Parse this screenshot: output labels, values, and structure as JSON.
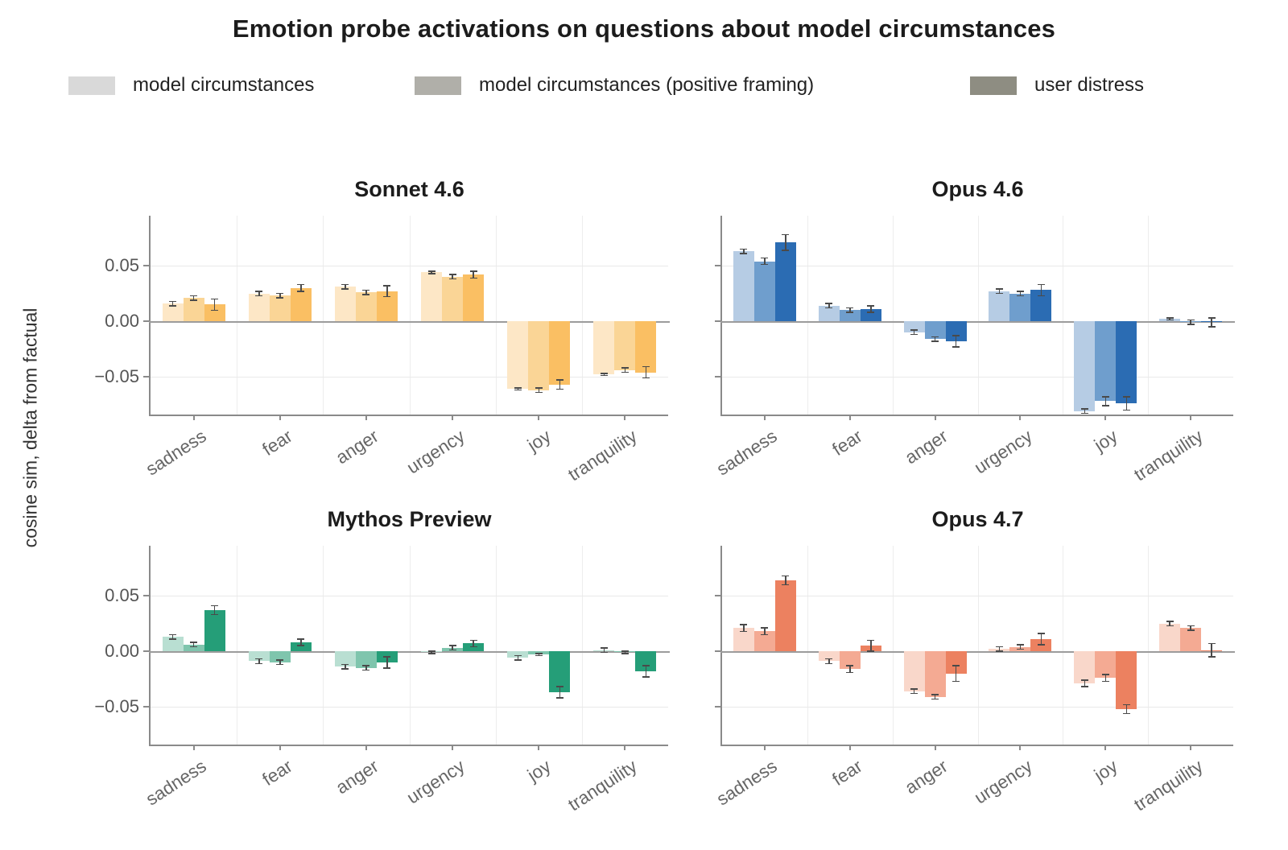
{
  "title": "Emotion probe activations on questions about model circumstances",
  "ylabel": "cosine sim, delta from factual",
  "legend": {
    "items": [
      {
        "label": "model circumstances",
        "color": "#d9d9d9"
      },
      {
        "label": "model circumstances (positive framing)",
        "color": "#b0afa9"
      },
      {
        "label": "user distress",
        "color": "#8e8d82"
      }
    ]
  },
  "chart_data": {
    "type": "bar",
    "categories": [
      "sadness",
      "fear",
      "anger",
      "urgency",
      "joy",
      "tranquility"
    ],
    "series_names": [
      "model circumstances",
      "model circumstances (positive framing)",
      "user distress"
    ],
    "ylim": [
      -0.084,
      0.095
    ],
    "yticks": [
      0.05,
      0.0,
      -0.05
    ],
    "ytick_labels": [
      "0.05",
      "0.00",
      "−0.05"
    ],
    "grid": true,
    "legend_position": "top",
    "error_bars": true,
    "subplots": [
      {
        "title": "Sonnet 4.6",
        "colors": [
          "#fde7c6",
          "#fad596",
          "#fabf63"
        ],
        "series": [
          {
            "name": "model circumstances",
            "values": [
              0.016,
              0.025,
              0.031,
              0.044,
              -0.061,
              -0.048
            ],
            "errors": [
              0.002,
              0.002,
              0.002,
              0.001,
              0.001,
              0.001
            ]
          },
          {
            "name": "model circumstances (positive framing)",
            "values": [
              0.021,
              0.023,
              0.026,
              0.04,
              -0.062,
              -0.044
            ],
            "errors": [
              0.002,
              0.002,
              0.002,
              0.002,
              0.002,
              0.002
            ]
          },
          {
            "name": "user distress",
            "values": [
              0.015,
              0.03,
              0.027,
              0.042,
              -0.057,
              -0.046
            ],
            "errors": [
              0.005,
              0.003,
              0.005,
              0.003,
              0.004,
              0.005
            ]
          }
        ]
      },
      {
        "title": "Opus 4.6",
        "colors": [
          "#b6cce4",
          "#6f9ecd",
          "#2b6cb3"
        ],
        "series": [
          {
            "name": "model circumstances",
            "values": [
              0.063,
              0.014,
              -0.01,
              0.027,
              -0.081,
              0.002
            ],
            "errors": [
              0.002,
              0.002,
              0.002,
              0.002,
              0.002,
              0.001
            ]
          },
          {
            "name": "model circumstances (positive framing)",
            "values": [
              0.054,
              0.01,
              -0.016,
              0.025,
              -0.072,
              -0.001
            ],
            "errors": [
              0.003,
              0.002,
              0.002,
              0.002,
              0.004,
              0.002
            ]
          },
          {
            "name": "user distress",
            "values": [
              0.071,
              0.011,
              -0.018,
              0.028,
              -0.074,
              -0.001
            ],
            "errors": [
              0.007,
              0.003,
              0.005,
              0.005,
              0.006,
              0.004
            ]
          }
        ]
      },
      {
        "title": "Mythos Preview",
        "colors": [
          "#b9dfd2",
          "#7fc5ad",
          "#259e78"
        ],
        "series": [
          {
            "name": "model circumstances",
            "values": [
              0.013,
              -0.009,
              -0.014,
              -0.001,
              -0.006,
              0.001
            ],
            "errors": [
              0.002,
              0.002,
              0.002,
              0.001,
              0.002,
              0.002
            ]
          },
          {
            "name": "model circumstances (positive framing)",
            "values": [
              0.006,
              -0.01,
              -0.015,
              0.003,
              -0.003,
              -0.001
            ],
            "errors": [
              0.002,
              0.002,
              0.002,
              0.002,
              0.001,
              0.001
            ]
          },
          {
            "name": "user distress",
            "values": [
              0.037,
              0.008,
              -0.01,
              0.007,
              -0.037,
              -0.018
            ],
            "errors": [
              0.004,
              0.003,
              0.005,
              0.003,
              0.005,
              0.005
            ]
          }
        ]
      },
      {
        "title": "Opus 4.7",
        "colors": [
          "#f9d7ca",
          "#f4aa93",
          "#ec8160"
        ],
        "series": [
          {
            "name": "model circumstances",
            "values": [
              0.021,
              -0.009,
              -0.036,
              0.002,
              -0.029,
              0.025
            ],
            "errors": [
              0.003,
              0.002,
              0.002,
              0.002,
              0.003,
              0.002
            ]
          },
          {
            "name": "model circumstances (positive framing)",
            "values": [
              0.018,
              -0.016,
              -0.041,
              0.004,
              -0.024,
              0.021
            ],
            "errors": [
              0.003,
              0.003,
              0.002,
              0.002,
              0.003,
              0.002
            ]
          },
          {
            "name": "user distress",
            "values": [
              0.064,
              0.005,
              -0.02,
              0.011,
              -0.052,
              0.001
            ],
            "errors": [
              0.004,
              0.005,
              0.007,
              0.005,
              0.004,
              0.006
            ]
          }
        ]
      }
    ]
  }
}
